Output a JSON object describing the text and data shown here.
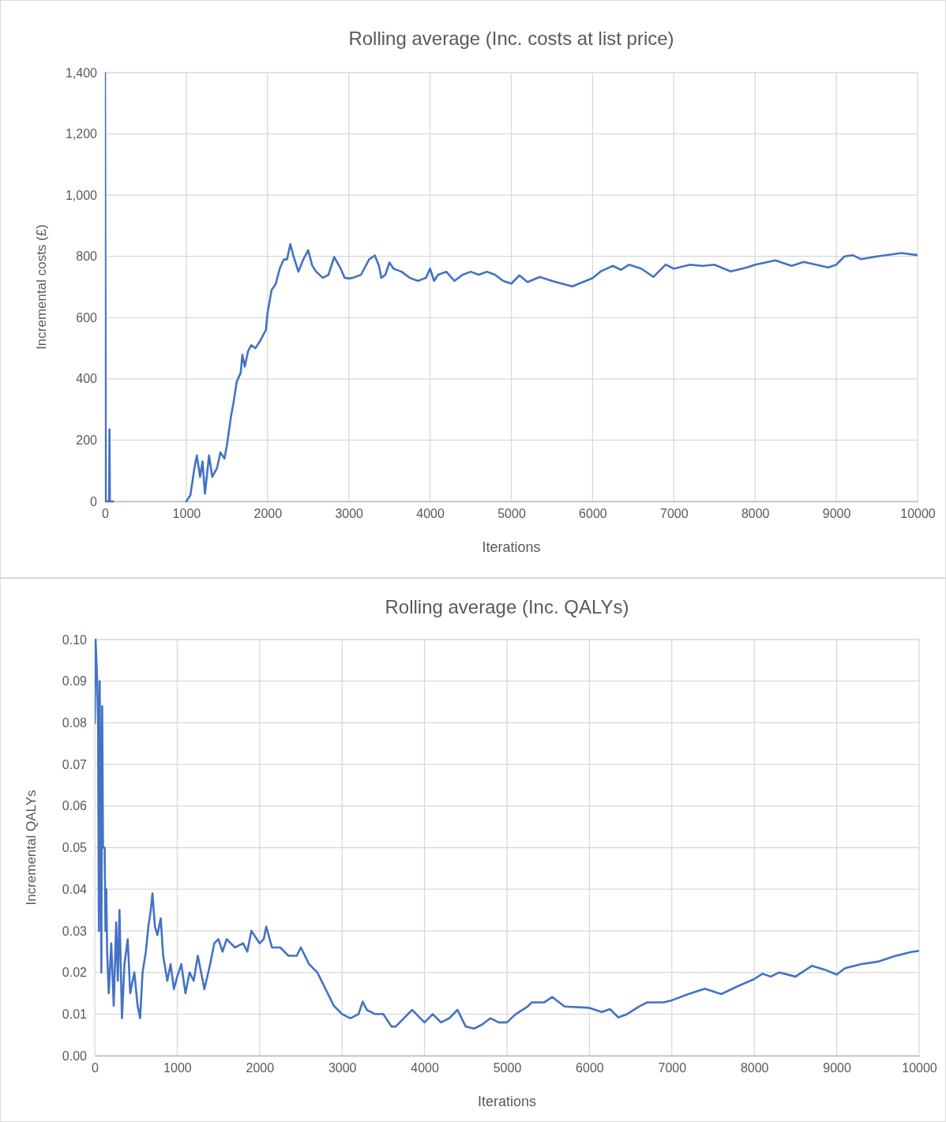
{
  "chart_data": [
    {
      "type": "line",
      "title": "Rolling average (Inc. costs at list price)",
      "xlabel": "Iterations",
      "ylabel": "Incremental costs (£)",
      "xlim": [
        0,
        10000
      ],
      "xticks": [
        0,
        1000,
        2000,
        3000,
        4000,
        5000,
        6000,
        7000,
        8000,
        9000,
        10000
      ],
      "ylim": [
        0,
        1400
      ],
      "yticks": [
        0,
        200,
        400,
        600,
        800,
        {
          "value": 1000,
          "label": "1,000"
        },
        {
          "value": 1200,
          "label": "1,200"
        },
        {
          "value": 1400,
          "label": "1,400"
        }
      ],
      "grid": true,
      "marker": "none",
      "line_style": "solid",
      "series": [
        {
          "color": "#4472c4",
          "x": [
            0,
            10,
            50,
            55,
            60,
            100,
            101,
            999,
            1000,
            1050,
            1100,
            1130,
            1170,
            1200,
            1230,
            1280,
            1320,
            1380,
            1420,
            1470,
            1500,
            1550,
            1580,
            1620,
            1670,
            1690,
            1720,
            1760,
            1800,
            1850,
            1900,
            1940,
            1980,
            2000,
            2050,
            2100,
            2150,
            2200,
            2240,
            2280,
            2320,
            2380,
            2440,
            2500,
            2550,
            2600,
            2680,
            2750,
            2820,
            2900,
            2950,
            3000,
            3050,
            3150,
            3250,
            3320,
            3370,
            3400,
            3450,
            3500,
            3550,
            3650,
            3750,
            3850,
            3950,
            4000,
            4050,
            4100,
            4200,
            4300,
            4400,
            4500,
            4600,
            4700,
            4800,
            4900,
            5000,
            5100,
            5200,
            5350,
            5500,
            5750,
            6000,
            6100,
            6250,
            6350,
            6450,
            6600,
            6750,
            6900,
            7000,
            7200,
            7350,
            7500,
            7700,
            7900,
            8000,
            8250,
            8450,
            8600,
            8900,
            9000,
            9100,
            9200,
            9300,
            9500,
            9800,
            10000
          ],
          "values": [
            1400,
            0,
            0,
            235,
            0,
            0,
            null,
            null,
            0,
            20,
            108,
            150,
            80,
            130,
            25,
            150,
            80,
            110,
            160,
            140,
            183,
            277,
            320,
            390,
            420,
            479,
            440,
            490,
            510,
            500,
            520,
            540,
            560,
            615,
            690,
            709,
            760,
            790,
            790,
            840,
            800,
            750,
            790,
            820,
            770,
            750,
            730,
            740,
            798,
            760,
            730,
            728,
            730,
            740,
            790,
            803,
            770,
            730,
            740,
            780,
            760,
            750,
            730,
            720,
            730,
            760,
            720,
            740,
            750,
            720,
            740,
            750,
            740,
            750,
            740,
            720,
            711,
            738,
            716,
            733,
            720,
            702,
            729,
            751,
            769,
            756,
            773,
            760,
            733,
            773,
            760,
            773,
            769,
            773,
            751,
            764,
            773,
            787,
            769,
            782,
            764,
            773,
            800,
            804,
            791,
            800,
            811,
            804
          ]
        }
      ]
    },
    {
      "type": "line",
      "title": "Rolling average (Inc. QALYs)",
      "xlabel": "Iterations",
      "ylabel": "Incremental QALYs",
      "xlim": [
        0,
        10000
      ],
      "xticks": [
        0,
        1000,
        2000,
        3000,
        4000,
        5000,
        6000,
        7000,
        8000,
        9000,
        10000
      ],
      "ylim": [
        0,
        0.1
      ],
      "yticks": [
        {
          "value": 0,
          "label": "0.00"
        },
        0.01,
        0.02,
        0.03,
        0.04,
        0.05,
        0.06,
        0.07,
        0.08,
        0.09,
        {
          "value": 0.1,
          "label": "0.10"
        }
      ],
      "grid": true,
      "marker": "none",
      "line_style": "solid",
      "series": [
        {
          "color": "#4472c4",
          "x": [
            0,
            10,
            30,
            40,
            50,
            60,
            80,
            90,
            100,
            120,
            130,
            140,
            150,
            170,
            200,
            230,
            260,
            280,
            300,
            330,
            360,
            400,
            430,
            480,
            520,
            550,
            580,
            620,
            650,
            680,
            700,
            730,
            760,
            800,
            830,
            880,
            920,
            960,
            1000,
            1050,
            1100,
            1150,
            1200,
            1250,
            1300,
            1330,
            1400,
            1450,
            1500,
            1550,
            1600,
            1700,
            1800,
            1850,
            1900,
            2000,
            2050,
            2080,
            2150,
            2250,
            2350,
            2450,
            2500,
            2600,
            2700,
            2800,
            2900,
            3000,
            3100,
            3200,
            3250,
            3300,
            3400,
            3500,
            3600,
            3650,
            3750,
            3850,
            3950,
            4000,
            4100,
            4200,
            4300,
            4400,
            4500,
            4600,
            4700,
            4800,
            4900,
            5000,
            5100,
            5250,
            5300,
            5450,
            5550,
            5700,
            6000,
            6150,
            6250,
            6350,
            6450,
            6600,
            6700,
            6900,
            7000,
            7200,
            7400,
            7600,
            7800,
            8000,
            8100,
            8200,
            8300,
            8500,
            8700,
            8850,
            9000,
            9100,
            9300,
            9500,
            9700,
            9900,
            10000
          ],
          "values": [
            0.08,
            0.1,
            0.09,
            0.08,
            0.03,
            0.09,
            0.02,
            0.084,
            0.05,
            0.05,
            0.03,
            0.04,
            0.025,
            0.015,
            0.027,
            0.012,
            0.032,
            0.018,
            0.035,
            0.009,
            0.022,
            0.028,
            0.015,
            0.02,
            0.012,
            0.009,
            0.02,
            0.025,
            0.031,
            0.035,
            0.039,
            0.031,
            0.029,
            0.033,
            0.024,
            0.018,
            0.022,
            0.016,
            0.019,
            0.022,
            0.015,
            0.02,
            0.018,
            0.024,
            0.019,
            0.016,
            0.022,
            0.027,
            0.028,
            0.025,
            0.028,
            0.026,
            0.027,
            0.025,
            0.03,
            0.027,
            0.028,
            0.031,
            0.026,
            0.026,
            0.024,
            0.024,
            0.026,
            0.022,
            0.02,
            0.016,
            0.012,
            0.01,
            0.009,
            0.01,
            0.013,
            0.011,
            0.01,
            0.01,
            0.007,
            0.007,
            0.009,
            0.011,
            0.009,
            0.008,
            0.01,
            0.008,
            0.009,
            0.011,
            0.007,
            0.0065,
            0.0075,
            0.009,
            0.008,
            0.008,
            0.0099,
            0.0118,
            0.0128,
            0.0128,
            0.0141,
            0.0118,
            0.0115,
            0.0105,
            0.0112,
            0.0092,
            0.0099,
            0.0118,
            0.0128,
            0.0128,
            0.0133,
            0.0148,
            0.0161,
            0.0148,
            0.0167,
            0.0184,
            0.0197,
            0.019,
            0.02,
            0.019,
            0.0216,
            0.0207,
            0.0195,
            0.021,
            0.022,
            0.0226,
            0.0239,
            0.0249,
            0.0252
          ]
        }
      ]
    }
  ]
}
